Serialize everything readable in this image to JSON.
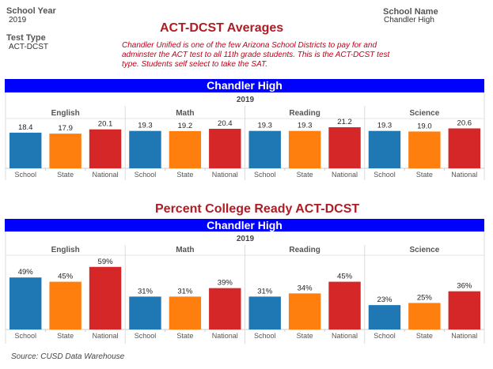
{
  "header": {
    "school_year_label": "School Year",
    "school_year": "2019",
    "test_type_label": "Test Type",
    "test_type": "ACT-DCST",
    "school_name_label": "School Name",
    "school_name": "Chandler High",
    "title": "ACT-DCST  Averages",
    "note": "Chandler Unified is one of the few Arizona School Districts to pay for and adminster the ACT test to all 11th grade students.  This is the ACT-DCST test type.  Students self select to take the SAT."
  },
  "section2_title": "Percent College Ready ACT-DCST",
  "source": "Source: CUSD Data Warehouse",
  "colors": {
    "School": "#1f77b4",
    "State": "#ff7f0e",
    "National": "#d62728",
    "band": "#0000ff"
  },
  "chart_data": [
    {
      "type": "bar",
      "band_title": "Chandler High",
      "year": "2019",
      "facets": [
        "English",
        "Math",
        "Reading",
        "Science"
      ],
      "categories": [
        "School",
        "State",
        "National"
      ],
      "values": [
        [
          18.4,
          17.9,
          20.1
        ],
        [
          19.3,
          19.2,
          20.4
        ],
        [
          19.3,
          19.3,
          21.2
        ],
        [
          19.3,
          19.0,
          20.6
        ]
      ],
      "labels": [
        [
          "18.4",
          "17.9",
          "20.1"
        ],
        [
          "19.3",
          "19.2",
          "20.4"
        ],
        [
          "19.3",
          "19.3",
          "21.2"
        ],
        [
          "19.3",
          "19.0",
          "20.6"
        ]
      ],
      "ylim": [
        0,
        25.7
      ],
      "grid": false
    },
    {
      "type": "bar",
      "band_title": "Chandler High",
      "year": "2019",
      "facets": [
        "English",
        "Math",
        "Reading",
        "Science"
      ],
      "categories": [
        "School",
        "State",
        "National"
      ],
      "values": [
        [
          49,
          45,
          59
        ],
        [
          31,
          31,
          39
        ],
        [
          31,
          34,
          45
        ],
        [
          23,
          25,
          36
        ]
      ],
      "labels": [
        [
          "49%",
          "45%",
          "59%"
        ],
        [
          "31%",
          "31%",
          "39%"
        ],
        [
          "31%",
          "34%",
          "45%"
        ],
        [
          "23%",
          "25%",
          "36%"
        ]
      ],
      "ylim": [
        0,
        70
      ],
      "grid": false
    }
  ]
}
